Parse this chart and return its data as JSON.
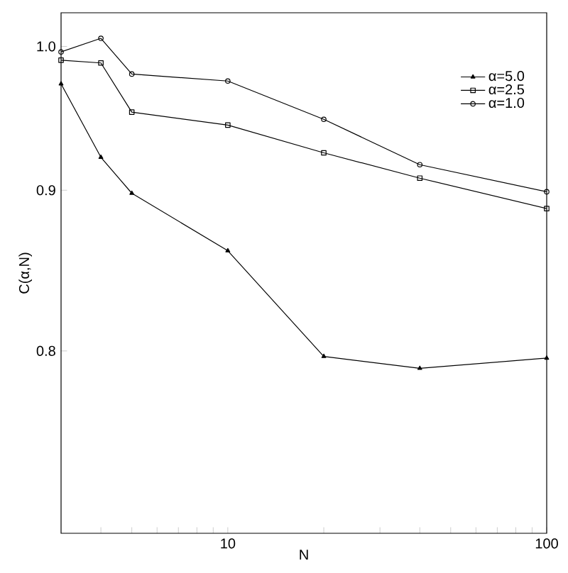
{
  "chart_data": {
    "type": "line",
    "xlabel": "N",
    "ylabel": "C(α,N)",
    "log": "xy",
    "legend": "top right",
    "xlim": [
      3,
      100
    ],
    "ylim": [
      0.7,
      1.025
    ],
    "xticks": [
      {
        "value": 4,
        "label": null
      },
      {
        "value": 5,
        "label": null
      },
      {
        "value": 6,
        "label": null
      },
      {
        "value": 7,
        "label": null
      },
      {
        "value": 8,
        "label": null
      },
      {
        "value": 9,
        "label": null
      },
      10,
      {
        "value": 20,
        "label": null
      },
      {
        "value": 30,
        "label": null
      },
      {
        "value": 40,
        "label": null
      },
      {
        "value": 50,
        "label": null
      },
      {
        "value": 60,
        "label": null
      },
      {
        "value": 70,
        "label": null
      },
      {
        "value": 80,
        "label": null
      },
      {
        "value": 90,
        "label": null
      },
      100
    ],
    "yticks": [
      0.8,
      0.9,
      {
        "value": 1,
        "label": "1.0"
      }
    ],
    "x": [
      3,
      4,
      5,
      10,
      20,
      40,
      100
    ],
    "series": [
      {
        "name": "α=5.0",
        "color": "#000000",
        "marker": "triangle",
        "values": [
          0.973,
          0.922,
          0.898,
          0.861,
          0.797,
          0.79,
          0.796
        ]
      },
      {
        "name": "α=2.5",
        "color": "#000000",
        "marker": "square",
        "values": [
          0.99,
          0.988,
          0.953,
          0.944,
          0.925,
          0.908,
          0.888
        ]
      },
      {
        "name": "α=1.0",
        "color": "#000000",
        "marker": "circle",
        "values": [
          0.996,
          1.006,
          0.98,
          0.975,
          0.948,
          0.917,
          0.899
        ]
      }
    ]
  }
}
